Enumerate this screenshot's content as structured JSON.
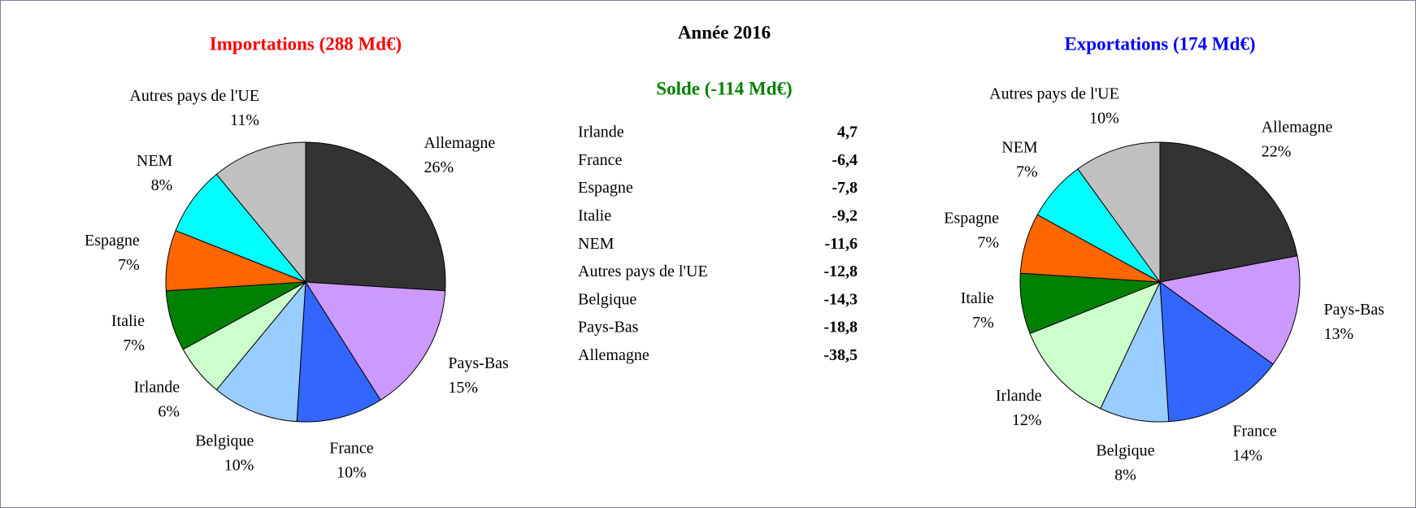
{
  "title": "Année 2016",
  "solde": {
    "title": "Solde (-114 Md€)",
    "title_color": "#008000",
    "rows": [
      {
        "label": "Irlande",
        "value": "4,7"
      },
      {
        "label": "France",
        "value": "-6,4"
      },
      {
        "label": "Espagne",
        "value": "-7,8"
      },
      {
        "label": "Italie",
        "value": "-9,2"
      },
      {
        "label": "NEM",
        "value": "-11,6"
      },
      {
        "label": "Autres pays de l'UE",
        "value": "-12,8"
      },
      {
        "label": "Belgique",
        "value": "-14,3"
      },
      {
        "label": "Pays-Bas",
        "value": "-18,8"
      },
      {
        "label": "Allemagne",
        "value": "-38,5"
      }
    ]
  },
  "chart_data": [
    {
      "type": "pie",
      "title": "Importations (288 Md€)",
      "title_color": "#ff0000",
      "categories": [
        "Allemagne",
        "Pays-Bas",
        "France",
        "Belgique",
        "Irlande",
        "Italie",
        "Espagne",
        "NEM",
        "Autres pays de l'UE"
      ],
      "values": [
        26,
        15,
        10,
        10,
        6,
        7,
        7,
        8,
        11
      ],
      "value_labels": [
        "26%",
        "15%",
        "10%",
        "10%",
        "6%",
        "7%",
        "7%",
        "8%",
        "11%"
      ],
      "colors": [
        "#333333",
        "#cc99ff",
        "#3366ff",
        "#99ccff",
        "#ccffcc",
        "#008000",
        "#ff6600",
        "#00ffff",
        "#c0c0c0"
      ]
    },
    {
      "type": "pie",
      "title": "Exportations (174 Md€)",
      "title_color": "#0000ff",
      "categories": [
        "Allemagne",
        "Pays-Bas",
        "France",
        "Belgique",
        "Irlande",
        "Italie",
        "Espagne",
        "NEM",
        "Autres pays de l'UE"
      ],
      "values": [
        22,
        13,
        14,
        8,
        12,
        7,
        7,
        7,
        10
      ],
      "value_labels": [
        "22%",
        "13%",
        "14%",
        "8%",
        "12%",
        "7%",
        "7%",
        "7%",
        "10%"
      ],
      "colors": [
        "#333333",
        "#cc99ff",
        "#3366ff",
        "#99ccff",
        "#ccffcc",
        "#008000",
        "#ff6600",
        "#00ffff",
        "#c0c0c0"
      ]
    }
  ]
}
